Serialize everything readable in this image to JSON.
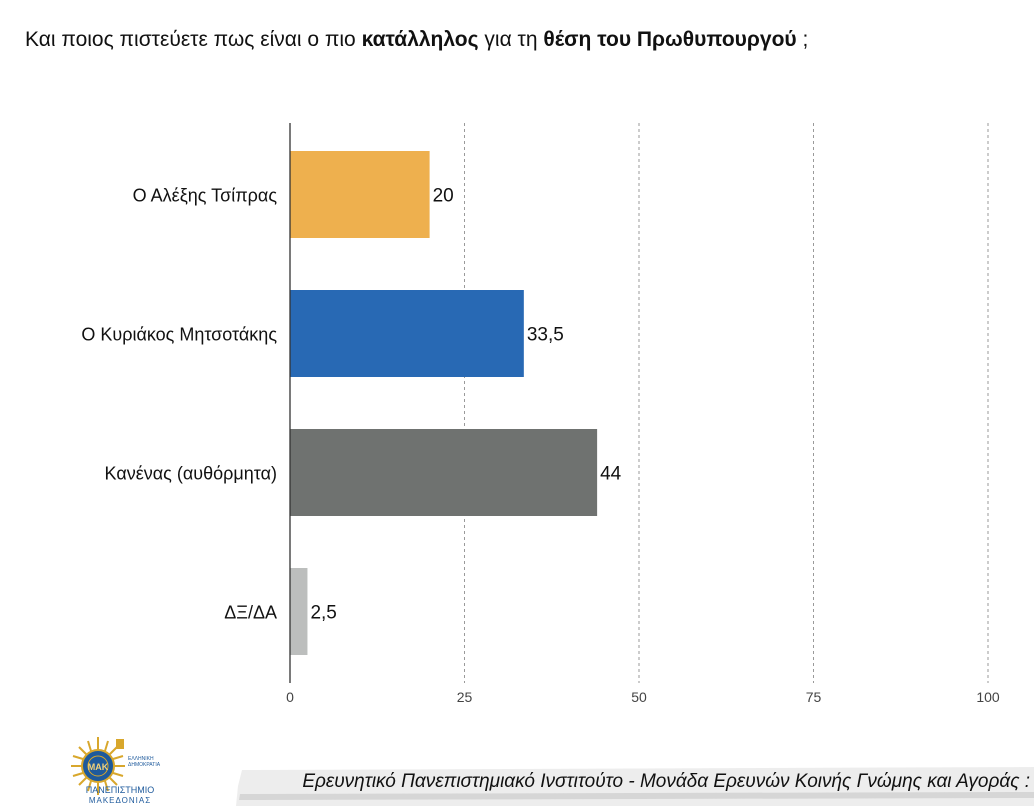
{
  "title": {
    "part1": "Και ποιος πιστεύετε πως είναι ο πιο ",
    "bold1": "κατάλληλος",
    "part2": " για τη ",
    "bold2": "θέση του Πρωθυπουργού",
    "part3": " ;"
  },
  "chart_data": {
    "type": "bar",
    "orientation": "horizontal",
    "categories": [
      "Ο Αλέξης Τσίπρας",
      "Ο Κυριάκος Μητσοτάκης",
      "Κανένας (αυθόρμητα)",
      "ΔΞ/ΔΑ"
    ],
    "values": [
      20,
      33.5,
      44,
      2.5
    ],
    "value_labels": [
      "20",
      "33,5",
      "44",
      "2,5"
    ],
    "colors": [
      "#EEB04E",
      "#2869B4",
      "#6F7270",
      "#BCBEBD"
    ],
    "xlim": [
      0,
      100
    ],
    "ticks": [
      0,
      25,
      50,
      75,
      100
    ],
    "tick_labels": [
      "0",
      "25",
      "50",
      "75",
      "100"
    ],
    "grid": "vertical dashed",
    "title": "Και ποιος πιστεύετε πως είναι ο πιο κατάλληλος για τη θέση του Πρωθυπουργού ;",
    "xlabel": "",
    "ylabel": ""
  },
  "logo": {
    "lines": [
      "ΕΛΛΗΝΙΚΗ",
      "ΔΗΜΟΚΡΑΤΙΑ",
      "ΠΑΝΕΠΙΣΤΗΜΙΟ",
      "ΜΑΚΕΔΟΝΙΑΣ"
    ],
    "emblem_text": "ΜΑΚ"
  },
  "footer": {
    "text": "Ερευνητικό Πανεπιστημιακό Ινστιτούτο - Μονάδα Ερευνών Κοινής Γνώμης και Αγοράς :"
  }
}
